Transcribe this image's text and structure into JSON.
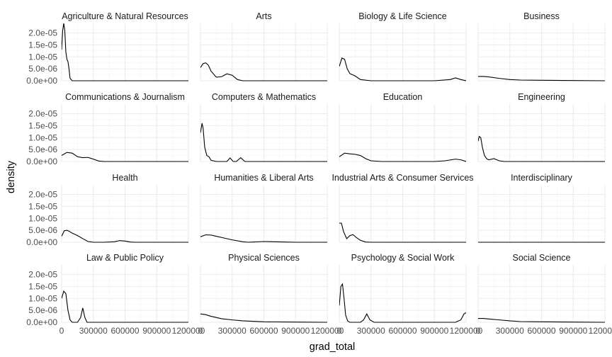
{
  "chart_data": {
    "type": "area",
    "xlabel": "grad_total",
    "ylabel": "density",
    "xlim": [
      0,
      1200000
    ],
    "ylim": [
      0,
      2.4e-05
    ],
    "x_ticks": [
      0,
      300000,
      600000,
      900000,
      1200000
    ],
    "x_tick_labels": [
      "0",
      "300000",
      "600000",
      "900000",
      "1200000"
    ],
    "y_ticks": [
      0,
      5e-06,
      1e-05,
      1.5e-05,
      2e-05
    ],
    "y_tick_labels": [
      "0.0e+00",
      "5.0e-06",
      "1.0e-05",
      "1.5e-05",
      "2.0e-05"
    ],
    "grid": true,
    "facets": [
      {
        "name": "Agriculture & Natural Resources",
        "x": [
          0,
          10000,
          20000,
          30000,
          40000,
          50000,
          60000,
          70000,
          80000,
          100000,
          150000,
          200000,
          400000,
          800000,
          1200000
        ],
        "y": [
          1.3e-05,
          2.1e-05,
          2.4e-05,
          2.1e-05,
          1.2e-05,
          9e-06,
          8e-06,
          5e-06,
          1e-06,
          0,
          0,
          0,
          0,
          0,
          0
        ]
      },
      {
        "name": "Arts",
        "x": [
          0,
          25000,
          50000,
          75000,
          100000,
          150000,
          200000,
          250000,
          300000,
          350000,
          400000,
          500000,
          600000,
          900000,
          1200000
        ],
        "y": [
          5.5e-06,
          7.2e-06,
          7.5e-06,
          6.5e-06,
          4e-06,
          1.5e-06,
          1.7e-06,
          2.9e-06,
          2.3e-06,
          5e-07,
          0,
          0,
          0,
          0,
          0
        ]
      },
      {
        "name": "Biology & Life Science",
        "x": [
          0,
          25000,
          50000,
          75000,
          100000,
          150000,
          200000,
          300000,
          400000,
          600000,
          900000,
          1050000,
          1100000,
          1150000,
          1200000
        ],
        "y": [
          6e-06,
          9.5e-06,
          9e-06,
          5e-06,
          3e-06,
          2e-06,
          5e-07,
          0,
          0,
          0,
          0,
          5e-07,
          1.2e-06,
          5e-07,
          0
        ]
      },
      {
        "name": "Business",
        "x": [
          0,
          50000,
          100000,
          200000,
          300000,
          400000,
          600000,
          900000,
          1200000
        ],
        "y": [
          1.8e-06,
          1.8e-06,
          1.6e-06,
          1e-06,
          5e-07,
          3e-07,
          2e-07,
          1e-07,
          0
        ]
      },
      {
        "name": "Communications & Journalism",
        "x": [
          0,
          50000,
          100000,
          150000,
          200000,
          250000,
          300000,
          350000,
          400000,
          500000,
          600000,
          900000,
          1200000
        ],
        "y": [
          2.5e-06,
          3.8e-06,
          3.5e-06,
          2e-06,
          1.6e-06,
          1.7e-06,
          1e-06,
          2e-07,
          0,
          0,
          0,
          0,
          0
        ]
      },
      {
        "name": "Computers & Mathematics",
        "x": [
          0,
          15000,
          25000,
          40000,
          60000,
          80000,
          100000,
          150000,
          250000,
          280000,
          310000,
          340000,
          380000,
          420000,
          500000,
          700000,
          1200000
        ],
        "y": [
          1.2e-05,
          1.6e-05,
          1.4e-05,
          6e-06,
          2.5e-06,
          2e-06,
          5e-07,
          0,
          0,
          1.5e-06,
          0,
          0,
          1.6e-06,
          0,
          0,
          0,
          0
        ]
      },
      {
        "name": "Education",
        "x": [
          0,
          50000,
          100000,
          150000,
          200000,
          250000,
          300000,
          400000,
          600000,
          900000,
          1000000,
          1100000,
          1150000,
          1200000
        ],
        "y": [
          2e-06,
          3.5e-06,
          3.2e-06,
          3e-06,
          2.5e-06,
          1.2e-06,
          3e-07,
          0,
          0,
          0,
          3e-07,
          1e-06,
          7e-07,
          0
        ]
      },
      {
        "name": "Engineering",
        "x": [
          0,
          10000,
          25000,
          40000,
          60000,
          80000,
          100000,
          150000,
          200000,
          250000,
          400000,
          800000,
          1200000
        ],
        "y": [
          8.5e-06,
          1.05e-05,
          1e-05,
          6e-06,
          2.5e-06,
          1.2e-06,
          7e-07,
          1.2e-06,
          3e-07,
          0,
          0,
          0,
          0
        ]
      },
      {
        "name": "Health",
        "x": [
          0,
          25000,
          50000,
          75000,
          100000,
          150000,
          200000,
          250000,
          300000,
          400000,
          500000,
          550000,
          600000,
          650000,
          700000,
          900000,
          1200000
        ],
        "y": [
          2.5e-06,
          4.8e-06,
          5e-06,
          4.5e-06,
          3.8e-06,
          2.8e-06,
          1.5e-06,
          3e-07,
          0,
          0,
          2e-07,
          7e-07,
          5e-07,
          1e-07,
          0,
          0,
          0
        ]
      },
      {
        "name": "Humanities & Liberal Arts",
        "x": [
          0,
          50000,
          100000,
          150000,
          200000,
          300000,
          400000,
          450000,
          500000,
          600000,
          800000,
          900000,
          1200000
        ],
        "y": [
          2.3e-06,
          3.1e-06,
          3e-06,
          2.5e-06,
          2e-06,
          1e-06,
          2e-07,
          0,
          1e-07,
          3e-07,
          1e-07,
          0,
          0
        ]
      },
      {
        "name": "Industrial Arts & Consumer Services",
        "x": [
          0,
          20000,
          40000,
          70000,
          100000,
          130000,
          160000,
          200000,
          250000,
          300000,
          400000,
          800000,
          1200000
        ],
        "y": [
          8e-06,
          8e-06,
          4.5e-06,
          1.5e-06,
          2.8e-06,
          3.2e-06,
          2e-06,
          8e-07,
          1e-07,
          0,
          0,
          0,
          0
        ]
      },
      {
        "name": "Interdisciplinary",
        "x": [
          0,
          1200000
        ],
        "y": [
          0,
          0
        ]
      },
      {
        "name": "Law & Public Policy",
        "x": [
          0,
          20000,
          40000,
          60000,
          80000,
          100000,
          150000,
          180000,
          200000,
          220000,
          240000,
          300000,
          600000,
          1200000
        ],
        "y": [
          1e-05,
          1.3e-05,
          1.2e-05,
          5e-06,
          1e-06,
          0,
          0,
          2e-06,
          6e-06,
          2e-06,
          0,
          0,
          0,
          0
        ]
      },
      {
        "name": "Physical Sciences",
        "x": [
          0,
          50000,
          100000,
          200000,
          300000,
          400000,
          600000,
          900000,
          1200000
        ],
        "y": [
          3.5e-06,
          3.2e-06,
          2.5e-06,
          1.5e-06,
          1e-06,
          6e-07,
          2e-07,
          1e-07,
          0
        ]
      },
      {
        "name": "Psychology & Social Work",
        "x": [
          0,
          15000,
          30000,
          45000,
          60000,
          80000,
          100000,
          150000,
          200000,
          230000,
          260000,
          290000,
          330000,
          400000,
          700000,
          1100000,
          1150000,
          1180000,
          1200000
        ],
        "y": [
          7e-06,
          1.5e-05,
          1.6e-05,
          1e-05,
          3e-06,
          5e-07,
          0,
          0,
          0,
          1e-06,
          3.5e-06,
          1e-06,
          0,
          0,
          0,
          0,
          1e-06,
          3.5e-06,
          4e-06
        ]
      },
      {
        "name": "Social Science",
        "x": [
          0,
          50000,
          100000,
          200000,
          300000,
          400000,
          600000,
          900000,
          1200000
        ],
        "y": [
          1.6e-06,
          1.6e-06,
          1.4e-06,
          1e-06,
          6e-07,
          3e-07,
          2e-07,
          1e-07,
          0
        ]
      }
    ]
  }
}
